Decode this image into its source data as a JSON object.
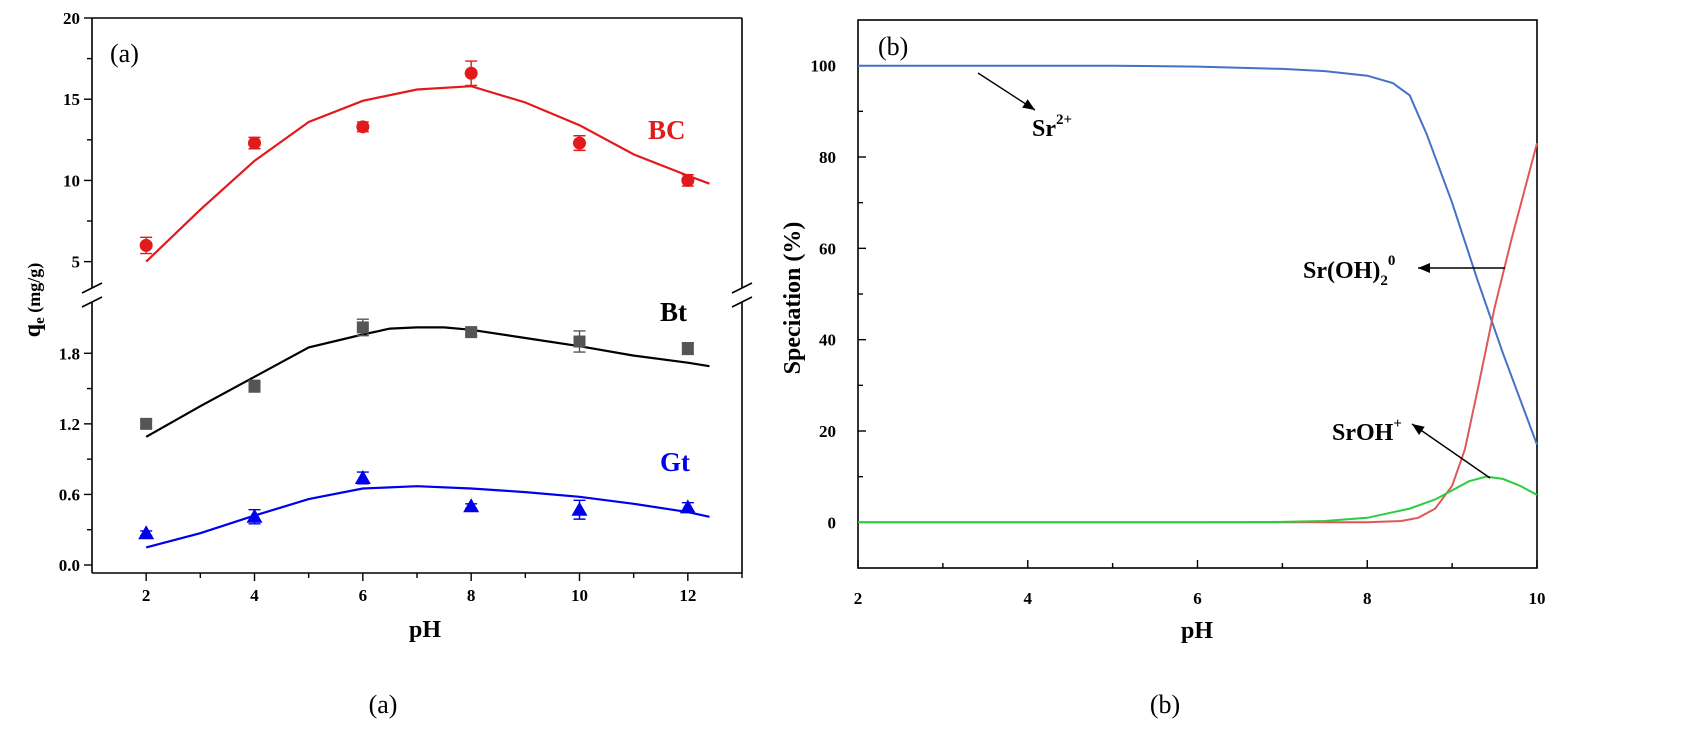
{
  "captions": {
    "left": "(a)",
    "right": "(b)"
  },
  "chart_data": [
    {
      "type": "scatter",
      "title": "(a)",
      "xlabel": "pH",
      "ylabel": "qe (mg/g)",
      "ylabel_main": "q",
      "ylabel_sub": "e",
      "ylabel_rest": " (mg/g)",
      "xlim": [
        1,
        13
      ],
      "x_ticks": [
        "2",
        "4",
        "6",
        "8",
        "10",
        "12"
      ],
      "y_ticks_lower": [
        "0.0",
        "0.6",
        "1.2",
        "1.8"
      ],
      "y_ticks_upper": [
        "5",
        "10",
        "15",
        "20"
      ],
      "y_break": "between 2.1 and 3.5 (broken axis)",
      "series": [
        {
          "name": "BC",
          "color": "#e31a1c",
          "marker": "circle",
          "x": [
            2,
            4,
            6,
            8,
            10,
            12
          ],
          "values": [
            6.0,
            12.3,
            13.3,
            16.6,
            12.3,
            10.0
          ],
          "errors": [
            0.5,
            0.35,
            0.3,
            0.75,
            0.45,
            0.35
          ],
          "fit_x": [
            2,
            3,
            4,
            5,
            6,
            7,
            8,
            9,
            10,
            11,
            12,
            12.4
          ],
          "fit_y": [
            5.0,
            8.2,
            11.2,
            13.6,
            14.9,
            15.6,
            15.8,
            14.8,
            13.4,
            11.6,
            10.3,
            9.8
          ]
        },
        {
          "name": "Bt",
          "color": "#000000",
          "marker": "square",
          "x": [
            2,
            4,
            6,
            8,
            10,
            12
          ],
          "values": [
            1.2,
            1.52,
            2.02,
            1.98,
            1.9,
            1.84
          ],
          "errors": [
            0.03,
            0.05,
            0.07,
            0.03,
            0.09,
            0.05
          ],
          "fit_x": [
            2,
            3,
            4,
            5,
            6,
            6.5,
            7,
            7.5,
            8,
            9,
            10,
            11,
            12,
            12.4
          ],
          "fit_y": [
            1.09,
            1.35,
            1.6,
            1.85,
            1.96,
            2.01,
            2.02,
            2.02,
            2.0,
            1.93,
            1.86,
            1.78,
            1.72,
            1.69
          ]
        },
        {
          "name": "Gt",
          "color": "#0000ee",
          "marker": "triangle",
          "x": [
            2,
            4,
            6,
            8,
            10,
            12
          ],
          "values": [
            0.27,
            0.41,
            0.74,
            0.5,
            0.47,
            0.49
          ],
          "errors": [
            0.02,
            0.06,
            0.05,
            0.02,
            0.08,
            0.04
          ],
          "fit_x": [
            2,
            3,
            4,
            5,
            6,
            7,
            8,
            9,
            10,
            11,
            12,
            12.4
          ],
          "fit_y": [
            0.15,
            0.27,
            0.42,
            0.56,
            0.65,
            0.67,
            0.65,
            0.62,
            0.58,
            0.52,
            0.45,
            0.41
          ]
        }
      ]
    },
    {
      "type": "line",
      "title": "(b)",
      "xlabel": "pH",
      "ylabel": "Speciation (%)",
      "xlim": [
        2,
        10
      ],
      "ylim": [
        -10,
        110
      ],
      "x_ticks": [
        "2",
        "4",
        "6",
        "8",
        "10"
      ],
      "y_ticks": [
        "0",
        "20",
        "40",
        "60",
        "80",
        "100"
      ],
      "annotations": {
        "sr2": "Sr2+",
        "sroh2": "Sr(OH)20",
        "sroh": "SrOH+"
      },
      "series": [
        {
          "name": "Sr2+",
          "color": "#4472c4",
          "x": [
            2,
            3,
            4,
            5,
            6,
            7,
            7.5,
            8,
            8.3,
            8.5,
            8.7,
            9,
            9.3,
            9.6,
            10
          ],
          "values": [
            100,
            100,
            100,
            100,
            99.8,
            99.3,
            98.8,
            97.8,
            96.2,
            93.5,
            85,
            70,
            53,
            37,
            17
          ]
        },
        {
          "name": "Sr(OH)20",
          "color": "#e15759",
          "x": [
            2,
            6,
            8,
            8.4,
            8.6,
            8.8,
            9,
            9.15,
            9.3,
            9.5,
            9.7,
            10
          ],
          "values": [
            0,
            0,
            0,
            0.3,
            1.0,
            3.0,
            8.0,
            16,
            29,
            47,
            62,
            83
          ]
        },
        {
          "name": "SrOH+",
          "color": "#2ecc40",
          "x": [
            2,
            6,
            7,
            7.5,
            8,
            8.5,
            8.8,
            9,
            9.2,
            9.4,
            9.6,
            9.8,
            10
          ],
          "values": [
            0,
            0,
            0.1,
            0.3,
            1.0,
            3.0,
            5.0,
            7.0,
            9.0,
            10.0,
            9.5,
            8.0,
            6.0
          ]
        }
      ]
    }
  ]
}
